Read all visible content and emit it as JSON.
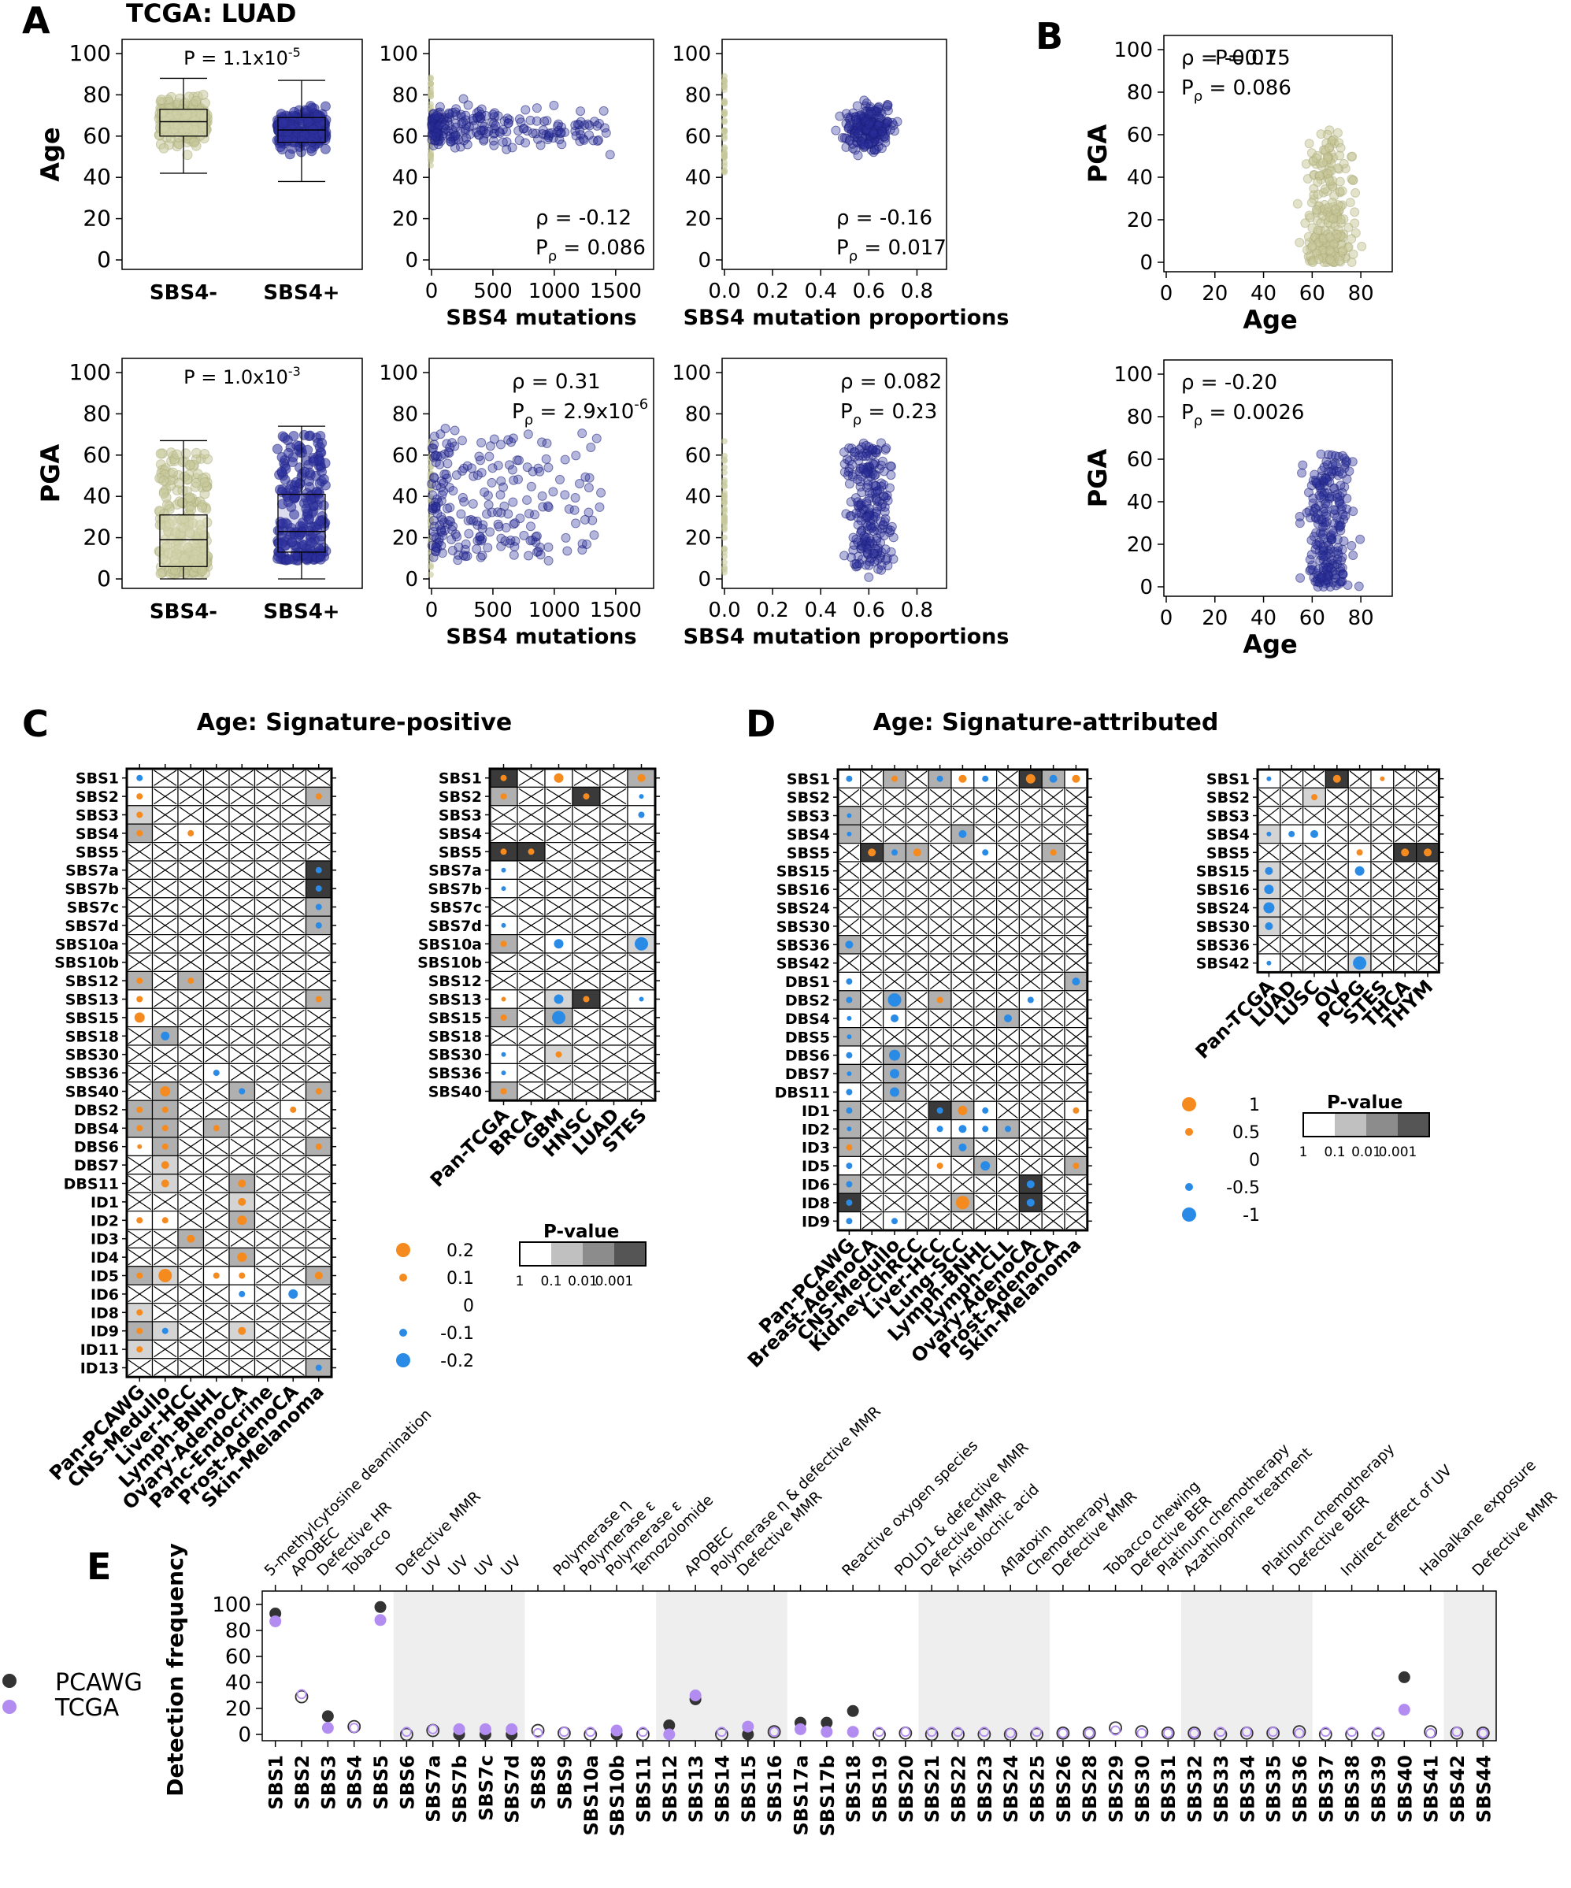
{
  "panel_labels": [
    "A",
    "B",
    "C",
    "D",
    "E"
  ],
  "colors": {
    "olive": "#c7c89a",
    "olive_fill": "#d9dab6",
    "olive_line": "#3a3a20",
    "navy": "#2b2f9c",
    "blue_edge": "#1b1f7a",
    "orange": "#f58a1f",
    "lightblue": "#2a8be6",
    "gray_band": "#eeeeee",
    "pcawg": "#333333",
    "tcga": "#b28cf0"
  },
  "panel_a": {
    "title": "TCGA: LUAD",
    "row1": {
      "ylabel": "Age",
      "box": {
        "type": "box",
        "categories": [
          "SBS4-",
          "SBS4+"
        ],
        "ylim": [
          0,
          100
        ],
        "yticks": [
          0,
          20,
          40,
          60,
          80,
          100
        ],
        "stats": [
          {
            "min": 42,
            "q1": 60,
            "median": 67,
            "q3": 73,
            "max": 88
          },
          {
            "min": 38,
            "q1": 57,
            "median": 63,
            "q3": 69,
            "max": 87
          }
        ],
        "p_main": "P = 1.1x10",
        "p_exp": "-5"
      },
      "scatter_mut": {
        "type": "scatter",
        "xlabel": "SBS4 mutations",
        "xlim": [
          0,
          1700
        ],
        "xticks": [
          0,
          500,
          1000,
          1500
        ],
        "ylim": [
          0,
          100
        ],
        "rho": "ρ = -0.12",
        "p_main": "P",
        "p_sub": "ρ",
        "p_val": " = 0.086"
      },
      "scatter_prop": {
        "type": "scatter",
        "xlabel": "SBS4 mutation proportions",
        "xlim": [
          0,
          0.9
        ],
        "xticks": [
          "0.0",
          "0.2",
          "0.4",
          "0.6",
          "0.8"
        ],
        "ylim": [
          0,
          100
        ],
        "rho": "ρ = -0.16",
        "p_main": "P",
        "p_sub": "ρ",
        "p_val": " = 0.017"
      }
    },
    "row2": {
      "ylabel": "PGA",
      "box": {
        "type": "box",
        "categories": [
          "SBS4-",
          "SBS4+"
        ],
        "ylim": [
          0,
          100
        ],
        "yticks": [
          0,
          20,
          40,
          60,
          80,
          100
        ],
        "stats": [
          {
            "min": 0,
            "q1": 6,
            "median": 19,
            "q3": 31,
            "max": 67
          },
          {
            "min": 0,
            "q1": 13,
            "median": 23,
            "q3": 41,
            "max": 74
          }
        ],
        "p_main": "P = 1.0x10",
        "p_exp": "-3"
      },
      "scatter_mut": {
        "type": "scatter",
        "xlabel": "SBS4 mutations",
        "xlim": [
          0,
          1700
        ],
        "xticks": [
          0,
          500,
          1000,
          1500
        ],
        "ylim": [
          0,
          100
        ],
        "rho": "ρ = 0.31",
        "p_main": "P",
        "p_sub": "ρ",
        "p_val": " = 2.9x10",
        "p_exp": "-6"
      },
      "scatter_prop": {
        "type": "scatter",
        "xlabel": "SBS4 mutation proportions",
        "xlim": [
          0,
          0.9
        ],
        "xticks": [
          "0.0",
          "0.2",
          "0.4",
          "0.6",
          "0.8"
        ],
        "ylim": [
          0,
          100
        ],
        "rho": "ρ = 0.082",
        "p_main": "P",
        "p_sub": "ρ",
        "p_val": " = 0.23"
      }
    }
  },
  "panel_b": {
    "top": {
      "type": "scatter",
      "xlabel": "Age",
      "ylabel": "PGA",
      "xlim": [
        0,
        90
      ],
      "xticks": [
        0,
        20,
        40,
        60,
        80
      ],
      "ylim": [
        0,
        100
      ],
      "yticks": [
        0,
        20,
        40,
        60,
        80,
        100
      ],
      "rho": "ρ = -0.075",
      "rho_overlay": "P=0.1",
      "p_main": "P",
      "p_sub": "ρ",
      "p_val": " = 0.086"
    },
    "bottom": {
      "type": "scatter",
      "xlabel": "Age",
      "ylabel": "PGA",
      "xlim": [
        0,
        90
      ],
      "xticks": [
        0,
        20,
        40,
        60,
        80
      ],
      "ylim": [
        0,
        100
      ],
      "yticks": [
        0,
        20,
        40,
        60,
        80,
        100
      ],
      "rho": "ρ = -0.20",
      "p_main": "P",
      "p_sub": "ρ",
      "p_val": " = 0.0026"
    }
  },
  "panel_c": {
    "title": "Age: Signature-positive",
    "left": {
      "rows": [
        "SBS1",
        "SBS2",
        "SBS3",
        "SBS4",
        "SBS5",
        "SBS7a",
        "SBS7b",
        "SBS7c",
        "SBS7d",
        "SBS10a",
        "SBS10b",
        "SBS12",
        "SBS13",
        "SBS15",
        "SBS18",
        "SBS30",
        "SBS36",
        "SBS40",
        "DBS2",
        "DBS4",
        "DBS6",
        "DBS7",
        "DBS11",
        "ID1",
        "ID2",
        "ID3",
        "ID4",
        "ID5",
        "ID6",
        "ID8",
        "ID9",
        "ID11",
        "ID13"
      ],
      "cols": [
        "Pan-PCAWG",
        "CNS-Medullo",
        "Liver-HCC",
        "Lymph-BNHL",
        "Ovary-AdenoCA",
        "Panc-Endocrine",
        "Prost-AdenoCA",
        "Skin-Melanoma"
      ],
      "grid": [
        "b5.1,X,X,X,X,X,X,X",
        "o5.1,X,X,X,X,X,X,o5.4",
        "o5.3,X,X,X,X,X,X,X",
        "o5.4,X,o5.2,X,X,X,X,X",
        "X,X,X,X,X,X,X,X",
        "X,X,X,X,X,X,X,b5.5",
        "X,X,X,X,X,X,X,b5.5",
        "X,X,X,X,X,X,X,b5.4",
        "X,X,X,X,X,X,X,b5.4",
        "X,X,X,X,X,X,X,X",
        "X,X,X,X,X,X,X,X",
        "o5.4,X,o5.4,X,X,X,X,X",
        "o5.1,X,X,X,X,X,X,o5.4",
        "o10.1,X,X,X,X,X,X,X",
        "X,b8.4,X,X,X,X,X,X",
        "X,X,X,X,X,X,X,X",
        "X,X,X,b5.1,X,X,X,X",
        "X,o10.4,X,X,b5.4,X,X,o5.4",
        "o5.4,o5.4,X,X,X,X,o5.1,X",
        "o5.4,o5.4,X,o5.4,X,X,X,X",
        "o3.1,o5.4,X,X,X,X,X,o5.4",
        "X,o7.3,X,X,X,X,X,X",
        "X,o7.3,X,X,o7.4,X,X,X",
        "X,X,X,X,o7.3,X,X,X",
        "o5.1,o5.1,X,X,o9.4,X,X,X",
        "X,X,o7.4,X,X,X,X,X",
        "X,X,X,X,o9.4,X,X,X",
        "o5.4,o14.3,X,o5.1,o5.1,X,X,o7.4",
        "X,X,X,X,b5.1,X,b9.1,X",
        "o5.3,X,X,X,X,X,X,X",
        "o5.4,b5.3,X,X,o7.3,X,X,X",
        "o5.3,X,X,X,X,X,X,X",
        "X,X,X,X,X,X,X,b5.4"
      ],
      "right": {
        "rows": [
          "SBS1",
          "SBS2",
          "SBS3",
          "SBS4",
          "SBS5",
          "SBS7a",
          "SBS7b",
          "SBS7c",
          "SBS7d",
          "SBS10a",
          "SBS10b",
          "SBS12",
          "SBS13",
          "SBS15",
          "SBS18",
          "SBS30",
          "SBS36",
          "SBS40"
        ],
        "cols": [
          "Pan-TCGA",
          "BRCA",
          "GBM",
          "HNSC",
          "LUAD",
          "STES"
        ],
        "grid": [
          "o5.5,X,o9.1,X,X,o7.4",
          "o5.4,X,X,o5.5,X,b3.1",
          "X,X,X,X,X,b5.1",
          "X,X,X,X,X,X",
          "o5.5,o5.5,X,X,X,X",
          "b3.1,X,X,X,X,X",
          "b3.1,X,X,X,X,X",
          "X,X,X,X,X,X",
          "b3.1,X,X,X,X,X",
          "o5.4,X,b9.1,X,X,b14.3",
          "X,X,X,X,X,X",
          "X,X,X,X,X,X",
          "o3.1,X,b9.3,o5.5,X,b3.1",
          "o5.4,X,b14.4,X,X,X",
          "X,X,X,X,X,X",
          "b3.1,X,o5.3,X,X,X",
          "b3.1,X,X,X,X,X",
          "o5.4,X,X,X,X,X"
        ]
      },
      "size_legend": [
        {
          "label": "0.2",
          "color": "orange",
          "r": 9
        },
        {
          "label": "0.1",
          "color": "orange",
          "r": 5
        },
        {
          "label": "0",
          "color": "none",
          "r": 0
        },
        {
          "label": "-0.1",
          "color": "blue",
          "r": 5
        },
        {
          "label": "-0.2",
          "color": "blue",
          "r": 9
        }
      ],
      "pval_legend": {
        "title": "P-value",
        "ticks": [
          "1",
          "0.1",
          "0.01",
          "0.001"
        ]
      }
    }
  },
  "panel_d": {
    "title": "Age: Signature-attributed",
    "left": {
      "rows": [
        "SBS1",
        "SBS2",
        "SBS3",
        "SBS4",
        "SBS5",
        "SBS15",
        "SBS16",
        "SBS24",
        "SBS30",
        "SBS36",
        "SBS42",
        "DBS1",
        "DBS2",
        "DBS4",
        "DBS5",
        "DBS6",
        "DBS7",
        "DBS11",
        "ID1",
        "ID2",
        "ID3",
        "ID5",
        "ID6",
        "ID8",
        "ID9"
      ],
      "cols": [
        "Pan-PCAWG",
        "Breast-AdenoCA",
        "CNS-Medullo",
        "Kidney-ChRCC",
        "Liver-HCC",
        "Lung-SCC",
        "Lymph-BNHL",
        "Lymph-CLL",
        "Ovary-AdenoCA",
        "Prost-AdenoCA",
        "Skin-Melanoma"
      ],
      "grid": [
        "b5.1,X,o5.4,X,b5.4,o7.1,b5.1,X,o9.5,b7.4,o7.1",
        "X,X,X,X,X,X,X,X,X,X,X",
        "b3.4,X,X,X,X,X,X,X,X,X,X",
        "b3.4,X,X,X,X,b7.4,X,X,X,X,X",
        "X,o7.5,b5.4,o7.4,X,X,b5.1,X,X,o5.4,X",
        "X,X,X,X,X,X,X,X,X,X,X",
        "X,X,X,X,X,X,X,X,X,X,X",
        "X,X,X,X,X,X,X,X,X,X,X",
        "X,X,X,X,X,X,X,X,X,X,X",
        "b7.4,X,X,X,X,X,X,X,X,X,X",
        "X,X,X,X,X,X,X,X,X,X,X",
        "b5.1,X,X,X,X,X,X,X,X,X,b7.4",
        "b5.4,X,b14.4,X,o5.4,X,X,X,b5.1,X,X",
        "b3.1,X,b7.1,X,X,X,X,b7.4,X,X,X",
        "b3.4,X,X,X,X,X,X,X,X,X,X",
        "b5.1,X,b11.4,X,X,X,X,X,X,X,X",
        "b3.4,X,b9.4,X,X,X,X,X,X,X,X",
        "b5.1,X,b9.4,X,X,X,X,X,X,X,X",
        "b5.4,X,X,X,b5.5,o9.4,b5.1,X,X,X,o5.1",
        "b3.4,X,X,X,b5.1,b7.1,b5.1,b5.4,X,X,X",
        "o5.4,X,X,X,X,b7.4,X,X,X,X,X",
        "b5.1,X,X,X,o5.1,X,b9.4,X,X,X,o5.4",
        "b5.4,X,X,X,X,X,X,X,b7.5,X,X",
        "b5.5,X,X,X,X,o14.4,X,X,b7.5,X,X",
        "b5.1,X,b5.1,X,X,X,X,X,X,X,X"
      ],
      "right": {
        "rows": [
          "SBS1",
          "SBS2",
          "SBS3",
          "SBS4",
          "SBS5",
          "SBS15",
          "SBS16",
          "SBS24",
          "SBS30",
          "SBS36",
          "SBS42"
        ],
        "cols": [
          "Pan-TCGA",
          "LUAD",
          "LUSC",
          "OV",
          "PCPG",
          "STES",
          "THCA",
          "THYM"
        ],
        "grid": [
          "b3.1,X,X,o7.5,X,o3.1,X,X",
          "X,X,o5.3,X,X,X,X,X",
          "X,X,X,X,X,X,X,X",
          "b3.3,b5.1,b7.1,X,X,X,X,X",
          "X,X,X,X,o5.1,X,o7.5,o7.5",
          "b7.3,X,X,X,b9.1,X,X,X",
          "b9.3,X,X,X,X,X,X,X",
          "b11.3,X,X,X,X,X,X,X",
          "b7.3,X,X,X,X,X,X,X",
          "X,X,X,X,X,X,X,X",
          "b3.1,X,X,X,b14.3,X,X,X"
        ]
      },
      "size_legend": [
        {
          "label": "1",
          "color": "orange",
          "r": 9
        },
        {
          "label": "0.5",
          "color": "orange",
          "r": 5
        },
        {
          "label": "0",
          "color": "none",
          "r": 0
        },
        {
          "label": "-0.5",
          "color": "blue",
          "r": 5
        },
        {
          "label": "-1",
          "color": "blue",
          "r": 9
        }
      ],
      "pval_legend": {
        "title": "P-value",
        "ticks": [
          "1",
          "0.1",
          "0.01",
          "0.001"
        ]
      }
    }
  },
  "chart_data": {
    "type": "scatter",
    "title": "",
    "ylabel": "Detection frequency",
    "ylim": [
      0,
      100
    ],
    "yticks": [
      0,
      20,
      40,
      60,
      80,
      100
    ],
    "legend": [
      "PCAWG",
      "TCGA"
    ],
    "categories": [
      "SBS1",
      "SBS2",
      "SBS3",
      "SBS4",
      "SBS5",
      "SBS6",
      "SBS7a",
      "SBS7b",
      "SBS7c",
      "SBS7d",
      "SBS8",
      "SBS9",
      "SBS10a",
      "SBS10b",
      "SBS11",
      "SBS12",
      "SBS13",
      "SBS14",
      "SBS15",
      "SBS16",
      "SBS17a",
      "SBS17b",
      "SBS18",
      "SBS19",
      "SBS20",
      "SBS21",
      "SBS22",
      "SBS23",
      "SBS24",
      "SBS25",
      "SBS26",
      "SBS28",
      "SBS29",
      "SBS30",
      "SBS31",
      "SBS32",
      "SBS33",
      "SBS34",
      "SBS35",
      "SBS36",
      "SBS37",
      "SBS38",
      "SBS39",
      "SBS40",
      "SBS41",
      "SBS42",
      "SBS44"
    ],
    "aetiologies": [
      "5-methylcytosine deamination",
      "APOBEC",
      "Defective HR",
      "Tobacco",
      "",
      "Defective MMR",
      "UV",
      "UV",
      "UV",
      "UV",
      "",
      "Polymerase η",
      "Polymerase ε",
      "Polymerase ε",
      "Temozolomide",
      "",
      "APOBEC",
      "Polymerase η & defective MMR",
      "Defective MMR",
      "",
      "",
      "",
      "Reactive oxygen species",
      "",
      "POLD1 & defective MMR",
      "Defective MMR",
      "Aristolochic acid",
      "",
      "Aflatoxin",
      "Chemotherapy",
      "Defective MMR",
      "",
      "Tobacco chewing",
      "Defective BER",
      "Platinum chemotherapy",
      "Azathioprine treatment",
      "",
      "",
      "Platinum chemotherapy",
      "Defective BER",
      "",
      "Indirect effect of UV",
      "",
      "",
      "Haloalkane exposure",
      "",
      "Defective MMR"
    ],
    "series": [
      {
        "name": "PCAWG",
        "values": [
          93,
          29,
          14,
          6,
          98,
          0,
          3,
          0,
          0,
          0,
          3,
          1,
          0,
          0,
          0,
          7,
          27,
          0,
          0,
          2,
          9,
          9,
          18,
          0,
          1,
          0,
          0,
          0,
          0,
          0,
          1,
          1,
          5,
          2,
          1,
          1,
          0,
          1,
          1,
          2,
          0,
          0,
          0,
          44,
          2,
          1,
          1
        ]
      },
      {
        "name": "TCGA",
        "values": [
          87,
          31,
          5,
          5,
          88,
          2,
          4,
          4,
          4,
          4,
          1,
          2,
          2,
          3,
          2,
          0,
          30,
          2,
          6,
          2,
          4,
          2,
          2,
          2,
          2,
          2,
          2,
          2,
          1,
          2,
          1,
          1,
          3,
          1,
          1,
          1,
          2,
          2,
          2,
          1,
          2,
          2,
          2,
          19,
          1,
          2,
          1
        ]
      }
    ]
  }
}
